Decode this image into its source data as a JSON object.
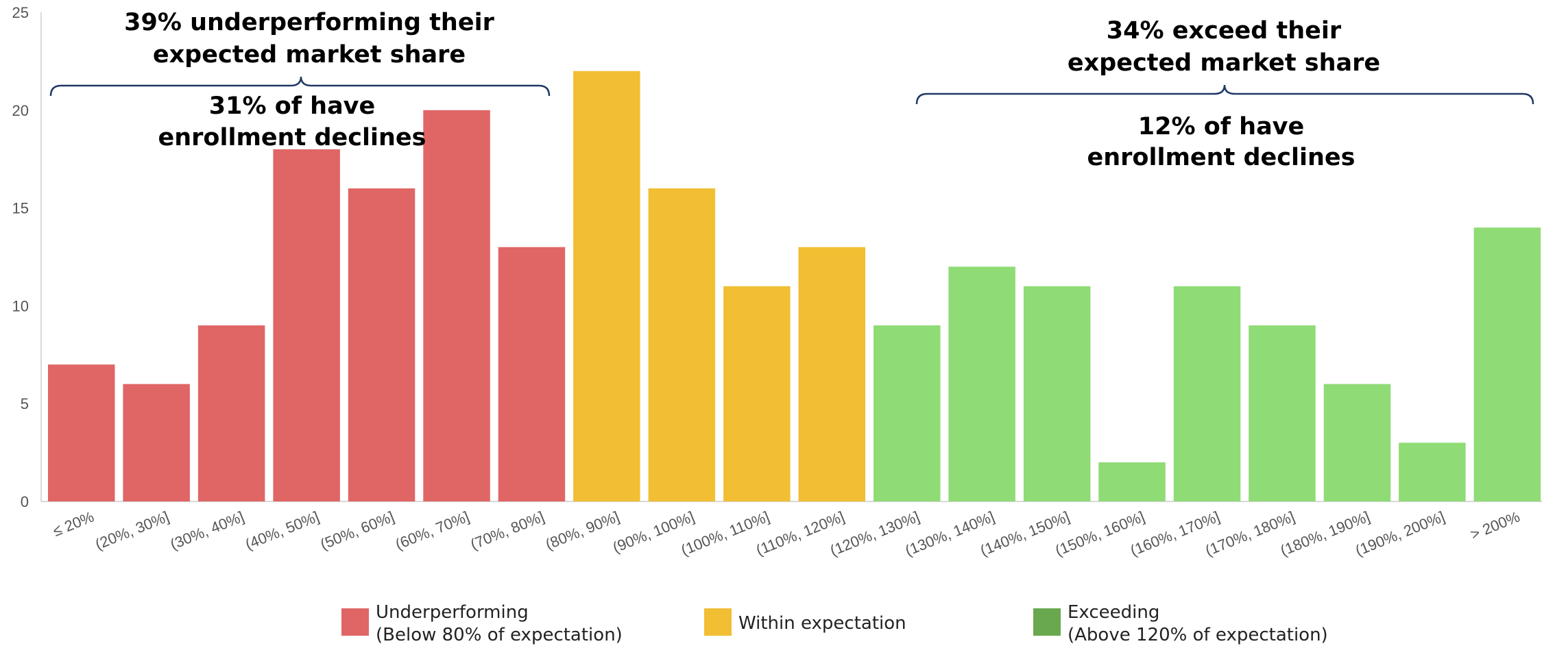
{
  "chart_data": {
    "type": "bar",
    "title": "",
    "xlabel": "",
    "ylabel": "",
    "ylim": [
      0,
      25
    ],
    "yticks": [
      "0",
      "5",
      "10",
      "15",
      "20",
      "25"
    ],
    "grid": false,
    "categories": [
      "≤ 20%",
      "(20%, 30%]",
      "(30%, 40%]",
      "(40%, 50%]",
      "(50%, 60%]",
      "(60%, 70%]",
      "(70%, 80%]",
      "(80%, 90%]",
      "(90%, 100%]",
      "(100%, 110%]",
      "(110%, 120%]",
      "(120%, 130%]",
      "(130%, 140%]",
      "(140%, 150%]",
      "(150%, 160%]",
      "(160%, 170%]",
      "(170%, 180%]",
      "(180%, 190%]",
      "(190%, 200%]",
      "> 200%"
    ],
    "values": [
      7,
      6,
      9,
      18,
      16,
      20,
      13,
      22,
      16,
      11,
      13,
      9,
      12,
      11,
      2,
      11,
      9,
      6,
      3,
      14
    ],
    "groups": [
      0,
      0,
      0,
      0,
      0,
      0,
      0,
      1,
      1,
      1,
      1,
      2,
      2,
      2,
      2,
      2,
      2,
      2,
      2,
      2
    ],
    "colors": {
      "underperforming": "#E06666",
      "within": "#F1BE34",
      "exceeding_bar": "#8FDB75",
      "exceeding_legend": "#6AA84F",
      "axis": "#D9D9D9",
      "brace": "#1F3864"
    },
    "legend": [
      {
        "line1": "Underperforming",
        "line2": "(Below 80% of expectation)",
        "color": "#E06666"
      },
      {
        "line1": "Within expectation",
        "line2": "",
        "color": "#F1BE34"
      },
      {
        "line1": "Exceeding",
        "line2": "(Above 120% of expectation)",
        "color": "#6AA84F"
      }
    ],
    "legend_position": "bottom",
    "annotations": {
      "left_top": [
        "39% underperforming their",
        "expected market share"
      ],
      "left_bottom": [
        "31% of have",
        "enrollment declines"
      ],
      "right_top": [
        "34% exceed their",
        "expected market share"
      ],
      "right_bottom": [
        "12% of have",
        "enrollment declines"
      ]
    }
  }
}
